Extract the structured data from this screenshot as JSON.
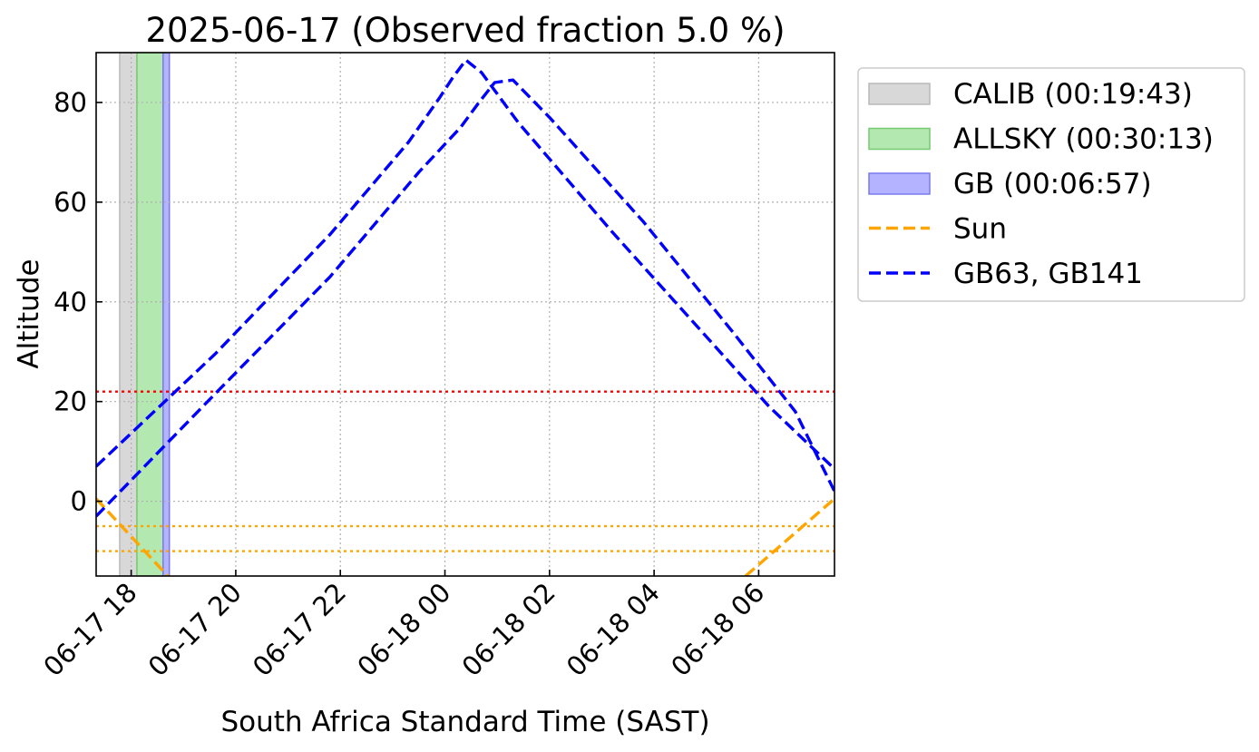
{
  "chart_data": {
    "type": "line",
    "title": "2025-06-17 (Observed fraction 5.0 %)",
    "xlabel": "South Africa Standard Time (SAST)",
    "ylabel": "Altitude",
    "x_units": "hours since 2025-06-17 00:00 SAST",
    "xlim": [
      17.33,
      31.45
    ],
    "ylim": [
      -15,
      90
    ],
    "x_ticks": [
      {
        "value": 18,
        "label": "06-17 18"
      },
      {
        "value": 20,
        "label": "06-17 20"
      },
      {
        "value": 22,
        "label": "06-17 22"
      },
      {
        "value": 24,
        "label": "06-18 00"
      },
      {
        "value": 26,
        "label": "06-18 02"
      },
      {
        "value": 28,
        "label": "06-18 04"
      },
      {
        "value": 30,
        "label": "06-18 06"
      }
    ],
    "y_ticks": [
      0,
      20,
      40,
      60,
      80
    ],
    "grid": true,
    "legend_position": "outside-right-top",
    "spans": [
      {
        "name": "CALIB (00:19:43)",
        "x0": 17.78,
        "x1": 18.11,
        "color": "#d8d8d8",
        "edge": "#b8b8b8"
      },
      {
        "name": "ALLSKY (00:30:13)",
        "x0": 18.11,
        "x1": 18.61,
        "color": "#b3e8b0",
        "edge": "#77c972"
      },
      {
        "name": "GB (00:06:57)",
        "x0": 18.61,
        "x1": 18.73,
        "color": "#b3b3ff",
        "edge": "#7a7aee"
      }
    ],
    "hlines": [
      {
        "y": 22,
        "color": "#ff0000"
      },
      {
        "y": -5,
        "color": "#ffa500"
      },
      {
        "y": -10,
        "color": "#ffa500"
      }
    ],
    "series": [
      {
        "name": "Sun",
        "color": "#ffa500",
        "style": "dashed",
        "segments": [
          {
            "x": [
              17.33,
              18.7
            ],
            "y": [
              0.5,
              -15
            ]
          },
          {
            "x": [
              29.75,
              31.45
            ],
            "y": [
              -15,
              0.5
            ]
          }
        ]
      },
      {
        "name": "GB63, GB141",
        "color": "#0000ff",
        "style": "dashed",
        "segments": [
          {
            "x": [
              17.33,
              19.6,
              21.8,
              23.3,
              23.9,
              24.15,
              24.4,
              24.7,
              25.4,
              27.2,
              29.0,
              30.2,
              31.45
            ],
            "y": [
              7,
              29.5,
              53.5,
              72,
              81,
              85,
              88.5,
              86,
              76,
              54,
              33,
              19,
              6.5
            ]
          },
          {
            "x": [
              17.33,
              19.6,
              21.8,
              23.5,
              24.3,
              24.65,
              24.95,
              25.3,
              26.0,
              27.8,
              29.5,
              30.7,
              31.45
            ],
            "y": [
              -3,
              21.5,
              45,
              66,
              75,
              80,
              84,
              84.5,
              77,
              56,
              34,
              18,
              2
            ]
          }
        ]
      }
    ],
    "legend": [
      {
        "label": "CALIB (00:19:43)",
        "kind": "patch",
        "color": "#d8d8d8",
        "edge": "#b8b8b8"
      },
      {
        "label": "ALLSKY (00:30:13)",
        "kind": "patch",
        "color": "#b3e8b0",
        "edge": "#77c972"
      },
      {
        "label": "GB (00:06:57)",
        "kind": "patch",
        "color": "#b3b3ff",
        "edge": "#7a7aee"
      },
      {
        "label": "Sun",
        "kind": "dash",
        "color": "#ffa500"
      },
      {
        "label": "GB63, GB141",
        "kind": "dash",
        "color": "#0000ff"
      }
    ]
  }
}
